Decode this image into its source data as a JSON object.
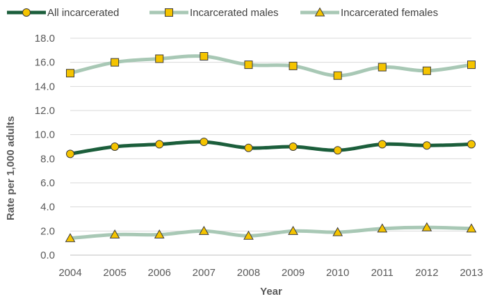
{
  "chart_data": {
    "type": "line",
    "x": [
      "2004",
      "2005",
      "2006",
      "2007",
      "2008",
      "2009",
      "2010",
      "2011",
      "2012",
      "2013"
    ],
    "xlabel": "Year",
    "ylabel": "Rate per 1,000 adults",
    "ylim": [
      0,
      18
    ],
    "yticks": [
      "0.0",
      "2.0",
      "4.0",
      "6.0",
      "8.0",
      "10.0",
      "12.0",
      "14.0",
      "16.0",
      "18.0"
    ],
    "grid": true,
    "legend_position": "top",
    "series": [
      {
        "name": "All incarcerated",
        "marker": "circle",
        "line_color": "#1b5e3b",
        "marker_fill": "#f5c400",
        "values": [
          8.4,
          9.0,
          9.2,
          9.4,
          8.9,
          9.0,
          8.7,
          9.2,
          9.1,
          9.2
        ]
      },
      {
        "name": "Incarcerated males",
        "marker": "square",
        "line_color": "#a8c8b5",
        "marker_fill": "#f5c400",
        "values": [
          15.1,
          16.0,
          16.3,
          16.5,
          15.8,
          15.7,
          14.9,
          15.6,
          15.3,
          15.8
        ]
      },
      {
        "name": "Incarcerated females",
        "marker": "triangle",
        "line_color": "#a8c8b5",
        "marker_fill": "#f5c400",
        "values": [
          1.4,
          1.7,
          1.7,
          2.0,
          1.6,
          2.0,
          1.9,
          2.2,
          2.3,
          2.2
        ]
      }
    ]
  }
}
